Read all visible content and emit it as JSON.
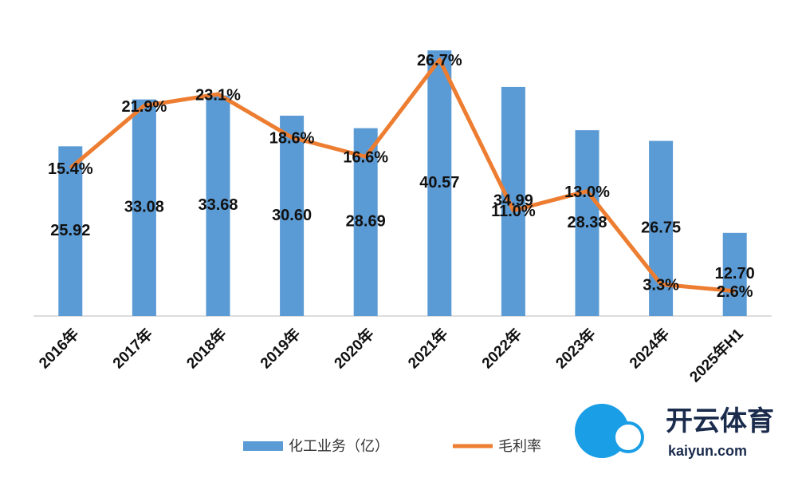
{
  "chart_data": {
    "type": "bar-line",
    "categories": [
      "2016年",
      "2017年",
      "2018年",
      "2019年",
      "2020年",
      "2021年",
      "2022年",
      "2023年",
      "2024年",
      "2025年H1"
    ],
    "series": [
      {
        "name": "化工业务（亿）",
        "type": "bar",
        "color": "#5b9bd5",
        "values": [
          25.92,
          33.08,
          33.68,
          30.6,
          28.69,
          40.57,
          34.99,
          28.38,
          26.75,
          12.7
        ],
        "value_labels": [
          "25.92",
          "33.08",
          "33.68",
          "30.60",
          "28.69",
          "40.57",
          "34.99",
          "28.38",
          "26.75",
          "12.70"
        ]
      },
      {
        "name": "毛利率",
        "type": "line",
        "axis": "y2",
        "color": "#ed7d31",
        "values": [
          15.4,
          21.9,
          23.1,
          18.6,
          16.6,
          26.7,
          11.0,
          13.0,
          3.3,
          2.6
        ],
        "value_labels": [
          "15.4%",
          "21.9%",
          "23.1%",
          "18.6%",
          "16.6%",
          "26.7%",
          "11.0%",
          "13.0%",
          "3.3%",
          "2.6%"
        ]
      }
    ],
    "ylim": [
      0,
      44
    ],
    "y2lim": [
      0,
      30
    ],
    "grid": false,
    "legend": "bottom"
  },
  "logo": {
    "name": "开云体育",
    "url": "kaiyun.com"
  }
}
